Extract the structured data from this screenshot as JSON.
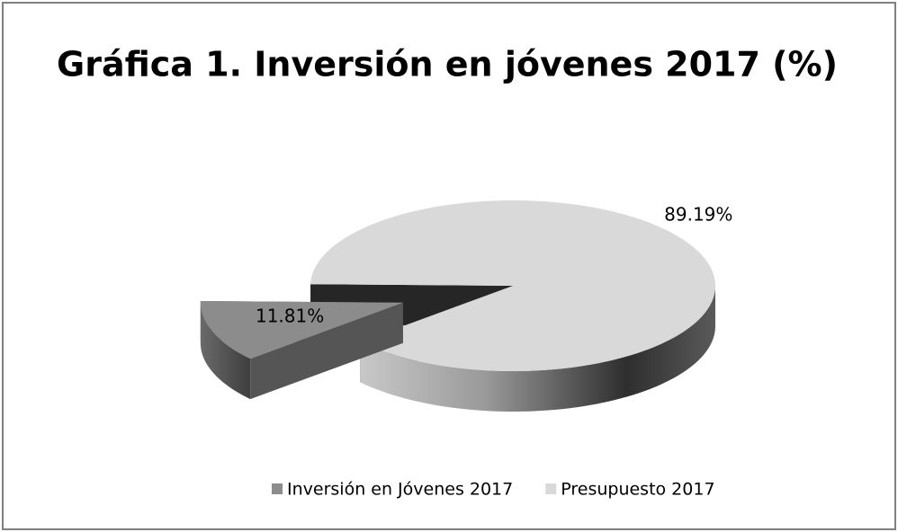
{
  "chart_data": {
    "type": "pie3d",
    "title": "Gráfica 1. Inversión en jóvenes 2017 (%)",
    "categories": [
      "Inversión en Jóvenes 2017",
      "Presupuesto 2017"
    ],
    "values": [
      11.81,
      89.19
    ],
    "value_labels": [
      "11.81%",
      "89.19%"
    ],
    "colors": [
      "#8c8c8c",
      "#d9d9d9"
    ],
    "legend": "bottom"
  }
}
